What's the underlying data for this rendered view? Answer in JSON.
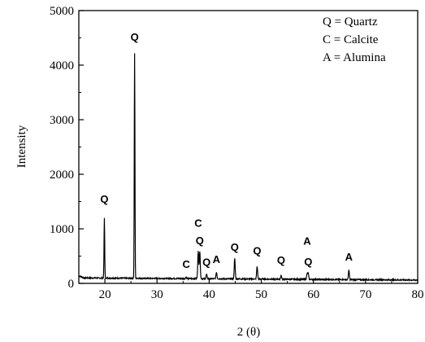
{
  "chart_data": {
    "type": "line",
    "xlabel": "2 (θ)",
    "ylabel": "Intensity",
    "xlim": [
      15,
      80
    ],
    "ylim": [
      0,
      5000
    ],
    "x_ticks": [
      "20",
      "30",
      "40",
      "50",
      "60",
      "70",
      "80"
    ],
    "y_ticks": [
      "0",
      "1000",
      "2000",
      "3000",
      "4000",
      "5000"
    ],
    "grid": false,
    "legend_position": "top-right",
    "legend": [
      "Q = Quartz",
      "C = Calcite",
      "A = Alumina"
    ],
    "peaks": [
      {
        "label": "Q",
        "x": 19.9,
        "y": 1200,
        "label_y": 1480
      },
      {
        "label": "Q",
        "x": 25.7,
        "y": 4220,
        "label_y": 4450
      },
      {
        "label": "C",
        "x": 35.6,
        "y": 130,
        "label_y": 280
      },
      {
        "label": "C",
        "x": 37.9,
        "y": 600,
        "label_y": 1040
      },
      {
        "label": "Q",
        "x": 38.2,
        "y": 600,
        "label_y": 720
      },
      {
        "label": "Q",
        "x": 39.5,
        "y": 180,
        "label_y": 320
      },
      {
        "label": "A",
        "x": 41.4,
        "y": 220,
        "label_y": 370
      },
      {
        "label": "Q",
        "x": 44.9,
        "y": 470,
        "label_y": 600
      },
      {
        "label": "Q",
        "x": 49.2,
        "y": 330,
        "label_y": 530
      },
      {
        "label": "Q",
        "x": 53.8,
        "y": 170,
        "label_y": 360
      },
      {
        "label": "A",
        "x": 58.8,
        "y": 200,
        "label_y": 710
      },
      {
        "label": "Q",
        "x": 59.0,
        "y": 200,
        "label_y": 330
      },
      {
        "label": "A",
        "x": 66.8,
        "y": 270,
        "label_y": 420
      }
    ],
    "baseline": 100
  }
}
